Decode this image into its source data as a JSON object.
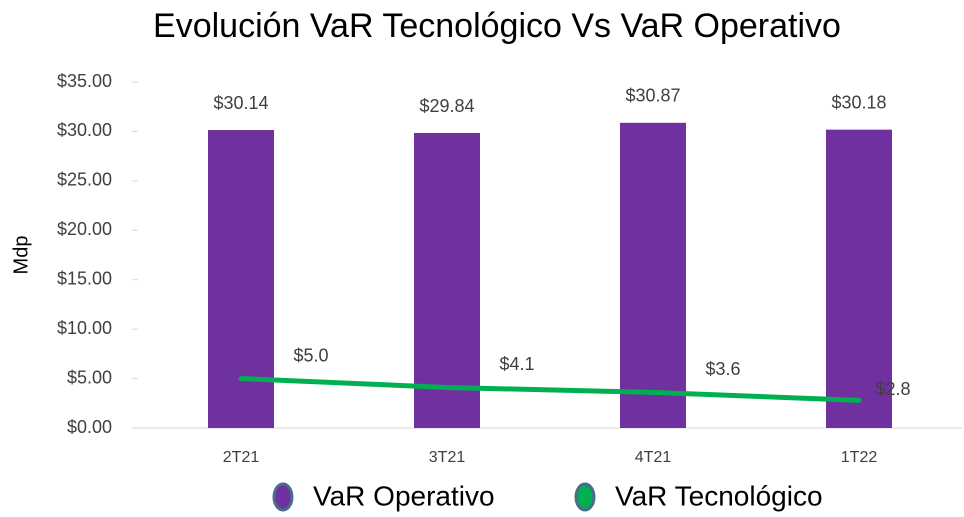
{
  "chart_data": {
    "type": "bar",
    "title": "Evolución VaR Tecnológico Vs VaR Operativo",
    "y_label": "Mdp",
    "categories": [
      "2T21",
      "3T21",
      "4T21",
      "1T22"
    ],
    "series": [
      {
        "name": "VaR Operativo",
        "type": "bar",
        "color": "#7030a0",
        "values": [
          30.14,
          29.84,
          30.87,
          30.18
        ],
        "value_labels": [
          "$30.14",
          "$29.84",
          "$30.87",
          "$30.18"
        ]
      },
      {
        "name": "VaR Tecnológico",
        "type": "line",
        "color": "#00b050",
        "values": [
          5.0,
          4.1,
          3.6,
          2.8
        ],
        "value_labels": [
          "$5.0",
          "$4.1",
          "$3.6",
          "$2.8"
        ]
      }
    ],
    "ylim": [
      0,
      35
    ],
    "yticks": [
      {
        "value": 0,
        "label": "$0.00"
      },
      {
        "value": 5,
        "label": "$5.00"
      },
      {
        "value": 10,
        "label": "$10.00"
      },
      {
        "value": 15,
        "label": "$15.00"
      },
      {
        "value": 20,
        "label": "$20.00"
      },
      {
        "value": 25,
        "label": "$25.00"
      },
      {
        "value": 30,
        "label": "$30.00"
      },
      {
        "value": 35,
        "label": "$35.00"
      }
    ],
    "legend": "bottom"
  }
}
